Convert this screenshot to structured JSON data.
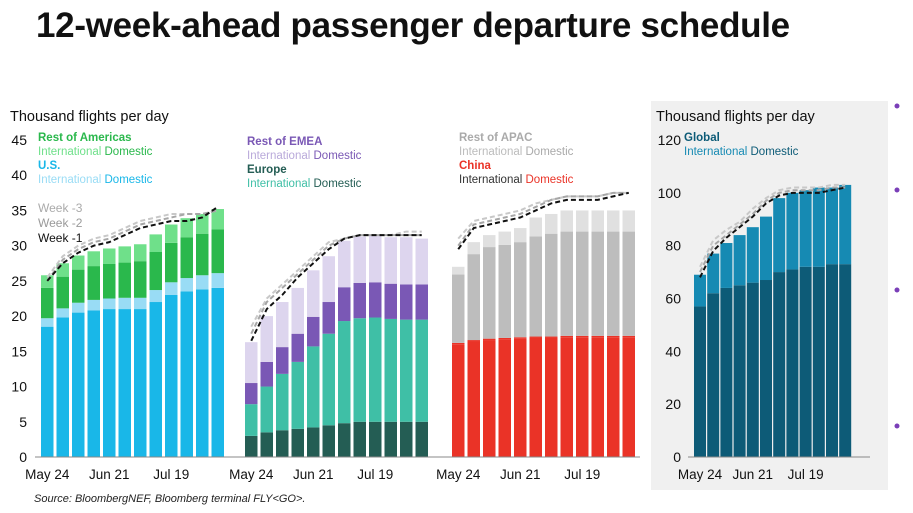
{
  "title": "12-week-ahead passenger departure schedule",
  "source": "Source: BloombergNEF, Bloomberg terminal FLY<GO>.",
  "colors": {
    "rest_americas": "#2ab84c",
    "rest_americas_light": "#6fe08a",
    "us": "#19b7e8",
    "us_light": "#99dcf5",
    "rest_emea": "#7a58b5",
    "rest_emea_light": "#ddd5ee",
    "europe": "#3fbfa6",
    "europe_dark": "#245d54",
    "rest_apac": "#bdbdbd",
    "rest_apac_light": "#e0e0e0",
    "china": "#ea3327",
    "global_dom": "#0d5b77",
    "global_intl": "#168ab3",
    "week3": "#c8c8c8",
    "week2": "#a6a6a6",
    "week1": "#111111",
    "panel_bg": "#f0f0f0",
    "bullet": "#7a3fb8"
  },
  "chart_data": [
    {
      "type": "bar",
      "stacked": true,
      "ylabel": "Thousand flights per day",
      "ylim": [
        0,
        45
      ],
      "yticks": [
        0,
        5,
        10,
        15,
        20,
        25,
        30,
        35,
        40,
        45
      ],
      "xtick_labels": [
        "May 24",
        "Jun 21",
        "Jul 19"
      ],
      "groups": [
        {
          "name": "Americas",
          "legend": [
            {
              "title": "Rest of Americas",
              "intl_label": "International",
              "dom_label": "Domestic"
            },
            {
              "title": "U.S.",
              "intl_label": "International",
              "dom_label": "Domestic"
            }
          ],
          "series": [
            {
              "name": "U.S. Domestic",
              "values": [
                18.5,
                19.8,
                20.5,
                20.8,
                21.0,
                21.0,
                21.0,
                22.0,
                23.0,
                23.5,
                23.8,
                24.0
              ]
            },
            {
              "name": "U.S. International",
              "values": [
                1.2,
                1.3,
                1.4,
                1.5,
                1.5,
                1.6,
                1.6,
                1.7,
                1.8,
                1.9,
                2.0,
                2.1
              ]
            },
            {
              "name": "Rest of Americas Domestic",
              "values": [
                4.3,
                4.5,
                4.7,
                4.8,
                4.9,
                5.0,
                5.2,
                5.4,
                5.6,
                5.8,
                5.9,
                6.2
              ]
            },
            {
              "name": "Rest of Americas International",
              "values": [
                1.8,
                1.9,
                2.0,
                2.1,
                2.2,
                2.3,
                2.4,
                2.5,
                2.6,
                2.7,
                2.8,
                2.9
              ]
            }
          ],
          "week_lines": {
            "Week -3": [
              25.5,
              28.5,
              30.0,
              31.0,
              31.5,
              32.5,
              33.5,
              34.0,
              34.5,
              34.5,
              34.5,
              35.0
            ],
            "Week -2": [
              25.0,
              28.0,
              29.5,
              30.5,
              31.0,
              32.0,
              33.0,
              33.5,
              34.0,
              34.5,
              34.5,
              35.0
            ],
            "Week -1": [
              25.0,
              27.5,
              29.0,
              30.0,
              30.5,
              31.5,
              32.5,
              33.0,
              33.5,
              33.5,
              34.0,
              35.5
            ]
          },
          "week_labels": [
            "Week -3",
            "Week -2",
            "Week -1"
          ]
        },
        {
          "name": "EMEA",
          "legend": [
            {
              "title": "Rest of EMEA",
              "intl_label": "International",
              "dom_label": "Domestic"
            },
            {
              "title": "Europe",
              "intl_label": "International",
              "dom_label": "Domestic"
            }
          ],
          "series": [
            {
              "name": "Europe Domestic",
              "values": [
                3.0,
                3.5,
                3.8,
                4.0,
                4.2,
                4.5,
                4.8,
                5.0,
                5.0,
                5.0,
                5.0,
                5.0
              ]
            },
            {
              "name": "Europe International",
              "values": [
                4.5,
                6.5,
                8.0,
                9.5,
                11.5,
                13.0,
                14.5,
                14.7,
                14.8,
                14.6,
                14.5,
                14.5
              ]
            },
            {
              "name": "Rest of EMEA Domestic",
              "values": [
                3.0,
                3.5,
                3.8,
                4.0,
                4.2,
                4.5,
                4.8,
                5.0,
                5.0,
                5.0,
                5.0,
                5.0
              ]
            },
            {
              "name": "Rest of EMEA International",
              "values": [
                5.8,
                6.5,
                6.4,
                6.5,
                6.6,
                6.5,
                6.6,
                6.6,
                6.6,
                6.6,
                6.7,
                6.5
              ]
            }
          ],
          "week_lines": {
            "Week -3": [
              18.5,
              22.5,
              24.5,
              26.5,
              28.5,
              30.5,
              31.0,
              31.5,
              31.5,
              31.5,
              32.0,
              32.0
            ],
            "Week -2": [
              17.5,
              22.0,
              24.0,
              26.0,
              28.0,
              30.0,
              31.0,
              31.5,
              31.5,
              31.5,
              31.5,
              31.5
            ],
            "Week -1": [
              16.5,
              21.0,
              23.0,
              25.5,
              27.5,
              29.5,
              31.0,
              31.5,
              31.5,
              31.5,
              31.5,
              31.5
            ]
          }
        },
        {
          "name": "APAC",
          "legend": [
            {
              "title": "Rest of APAC",
              "intl_label": "International",
              "dom_label": "Domestic"
            },
            {
              "title": "China",
              "intl_label": "International",
              "dom_label": "Domestic"
            }
          ],
          "series": [
            {
              "name": "China Domestic",
              "values": [
                16.0,
                16.4,
                16.6,
                16.7,
                16.8,
                16.9,
                16.9,
                17.0,
                17.0,
                17.0,
                17.0,
                17.0
              ]
            },
            {
              "name": "China International",
              "values": [
                0.2,
                0.2,
                0.2,
                0.2,
                0.2,
                0.2,
                0.2,
                0.2,
                0.2,
                0.2,
                0.2,
                0.2
              ]
            },
            {
              "name": "Rest of APAC Domestic",
              "values": [
                9.7,
                12.2,
                13.0,
                13.2,
                13.5,
                14.2,
                14.6,
                14.8,
                14.8,
                14.8,
                14.8,
                14.8
              ]
            },
            {
              "name": "Rest of APAC International",
              "values": [
                1.1,
                1.7,
                1.7,
                1.9,
                2.0,
                2.7,
                2.8,
                3.0,
                3.0,
                3.0,
                3.0,
                3.0
              ]
            }
          ],
          "week_lines": {
            "Week -3": [
              31.0,
              33.5,
              34.0,
              34.5,
              35.0,
              36.0,
              36.5,
              37.0,
              37.0,
              37.0,
              37.5,
              37.5
            ],
            "Week -2": [
              30.0,
              33.0,
              33.5,
              34.0,
              34.5,
              35.5,
              36.5,
              37.0,
              37.0,
              37.0,
              37.5,
              37.5
            ],
            "Week -1": [
              29.5,
              32.5,
              33.0,
              33.5,
              34.0,
              35.0,
              36.0,
              36.5,
              36.5,
              36.5,
              37.0,
              37.5
            ]
          }
        }
      ]
    },
    {
      "type": "bar",
      "stacked": true,
      "ylabel": "Thousand flights per day",
      "ylim": [
        0,
        120
      ],
      "yticks": [
        0,
        20,
        40,
        60,
        80,
        100,
        120
      ],
      "xtick_labels": [
        "May 24",
        "Jun 21",
        "Jul 19"
      ],
      "legend": [
        {
          "title": "Global",
          "intl_label": "International",
          "dom_label": "Domestic"
        }
      ],
      "series": [
        {
          "name": "Global Domestic",
          "values": [
            57.0,
            62.0,
            64.0,
            65.0,
            66.0,
            67.0,
            70.0,
            71.0,
            72.0,
            72.0,
            73.0,
            73.0
          ]
        },
        {
          "name": "Global International",
          "values": [
            12.0,
            15.0,
            17.0,
            19.0,
            21.0,
            24.0,
            28.0,
            29.0,
            29.0,
            30.0,
            29.0,
            30.0
          ]
        }
      ],
      "week_lines": {
        "Week -3": [
          72.0,
          82.0,
          86.0,
          89.0,
          94.0,
          98.0,
          101.0,
          102.0,
          102.0,
          102.0,
          103.0,
          103.0
        ],
        "Week -2": [
          70.0,
          80.0,
          84.0,
          88.0,
          92.0,
          97.0,
          100.0,
          101.0,
          101.0,
          101.0,
          102.0,
          102.0
        ],
        "Week -1": [
          68.0,
          78.0,
          83.0,
          87.0,
          91.0,
          96.0,
          99.0,
          100.0,
          100.0,
          100.0,
          101.0,
          102.0
        ]
      }
    }
  ]
}
